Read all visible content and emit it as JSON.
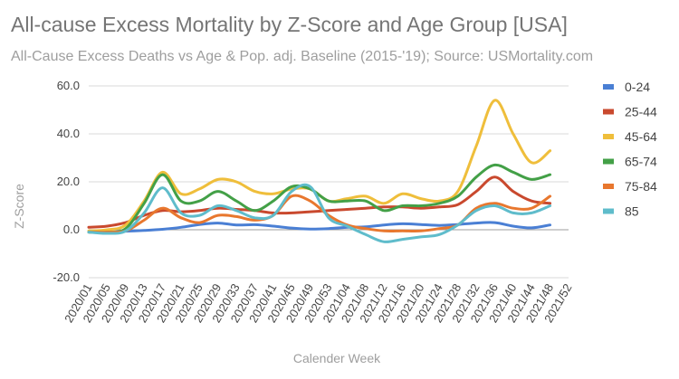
{
  "chart_data": {
    "type": "line",
    "title": "All-cause Excess Mortality by Z-Score and Age Group [USA]",
    "subtitle": "All-Cause Excess Deaths vs Age & Pop. adj. Baseline (2015-'19); Source: USMortality.com",
    "xlabel": "Calender Week",
    "ylabel": "Z-Score",
    "ylim": [
      -20,
      60
    ],
    "yticks": [
      "60.0",
      "40.0",
      "20.0",
      "0.0",
      "-20.0"
    ],
    "ytick_values": [
      60,
      40,
      20,
      0,
      -20
    ],
    "x": [
      "2020/01",
      "2020/05",
      "2020/09",
      "2020/13",
      "2020/17",
      "2020/21",
      "2020/25",
      "2020/29",
      "2020/33",
      "2020/37",
      "2020/41",
      "2020/45",
      "2020/49",
      "2020/53",
      "2021/04",
      "2021/08",
      "2021/12",
      "2021/16",
      "2021/20",
      "2021/24",
      "2021/28",
      "2021/32",
      "2021/36",
      "2021/40",
      "2021/44",
      "2021/48",
      "2021/52"
    ],
    "grid": true,
    "legend_position": "right",
    "series": [
      {
        "name": "0-24",
        "color": "#4a7fd4",
        "values": [
          -1.0,
          -1.0,
          -0.6,
          -0.3,
          0.2,
          1.0,
          2.2,
          2.8,
          2.0,
          2.1,
          1.5,
          0.7,
          0.3,
          0.5,
          1.0,
          1.2,
          2.0,
          2.5,
          2.2,
          1.8,
          2.2,
          2.8,
          3.0,
          1.5,
          0.8,
          2.0,
          null
        ]
      },
      {
        "name": "25-44",
        "color": "#c9492e",
        "values": [
          1.0,
          1.5,
          3.0,
          6.0,
          8.0,
          7.5,
          8.0,
          9.0,
          8.5,
          8.0,
          7.0,
          7.0,
          7.5,
          8.0,
          8.5,
          9.0,
          9.5,
          9.5,
          9.0,
          9.5,
          10.5,
          16.0,
          22.0,
          16.0,
          12.0,
          11.0,
          null
        ]
      },
      {
        "name": "45-64",
        "color": "#efbe3b",
        "values": [
          -0.5,
          0.0,
          2.0,
          12.0,
          24.0,
          15.0,
          17.0,
          21.0,
          20.0,
          16.0,
          15.0,
          17.0,
          17.0,
          12.0,
          13.0,
          14.0,
          11.0,
          15.0,
          13.0,
          12.0,
          16.0,
          35.0,
          54.0,
          40.0,
          28.0,
          33.0,
          null
        ]
      },
      {
        "name": "65-74",
        "color": "#43a047",
        "values": [
          -1.0,
          -1.0,
          0.5,
          11.0,
          23.0,
          12.0,
          12.0,
          16.0,
          12.0,
          8.0,
          12.0,
          18.0,
          17.0,
          12.0,
          12.0,
          12.0,
          8.0,
          10.0,
          10.0,
          11.0,
          14.0,
          22.0,
          27.0,
          24.0,
          21.0,
          23.0,
          null
        ]
      },
      {
        "name": "75-84",
        "color": "#e8772e",
        "values": [
          -1.0,
          -1.0,
          -0.5,
          4.0,
          9.0,
          5.0,
          3.0,
          6.0,
          5.5,
          4.0,
          6.0,
          14.0,
          12.0,
          6.0,
          2.0,
          0.5,
          -0.5,
          -0.5,
          -0.5,
          0.5,
          2.0,
          9.0,
          11.0,
          9.0,
          9.0,
          14.0,
          null
        ]
      },
      {
        "name": "85",
        "color": "#5fbccb",
        "values": [
          -1.0,
          -1.5,
          -0.5,
          7.0,
          17.5,
          7.0,
          6.0,
          10.0,
          8.0,
          5.0,
          6.0,
          16.0,
          18.0,
          5.0,
          1.5,
          -2.0,
          -5.0,
          -4.0,
          -3.0,
          -2.0,
          2.0,
          8.0,
          10.0,
          7.0,
          7.0,
          10.0,
          null
        ]
      }
    ]
  }
}
